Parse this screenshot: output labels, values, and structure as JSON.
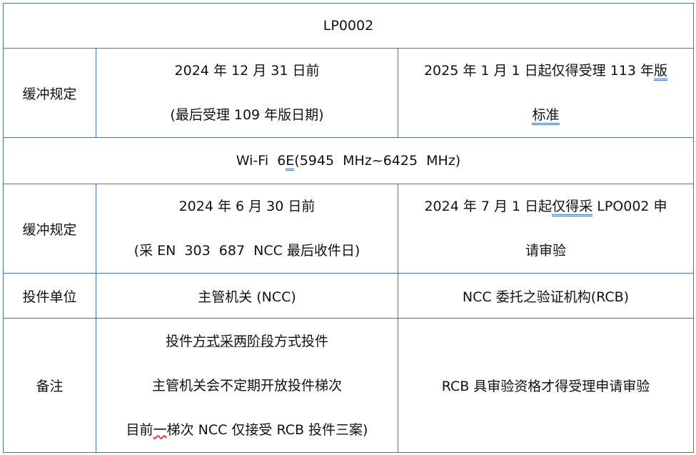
{
  "title_row": "LP0002",
  "section1": {
    "label": "缓冲规定",
    "left": [
      "2024 年 12 月 31 日前",
      "(最后受理 109 年版日期)"
    ],
    "right_line1_a": "2025 年 1 月 1 日起仅得受理 113 年",
    "right_line1_b": "版",
    "right_line2": "标准"
  },
  "wifi_row": {
    "a": "Wi-Fi  6",
    "b": "E",
    "c": "(5945  MHz~6425  MHz)"
  },
  "section2": {
    "label": "缓冲规定",
    "left": [
      "2024 年 6 月 30 日前",
      "(采 EN  303  687  NCC 最后收件日)"
    ],
    "right_line1_a": "2024 年 7 月 1 日起",
    "right_line1_b": "仅得采",
    "right_line1_c": " LPO002 申",
    "right_line2": "请审验"
  },
  "submission_row": {
    "label": "投件单位",
    "left": "主管机关 (NCC)",
    "right": "NCC 委托之验证机构(RCB)"
  },
  "notes_row": {
    "label": "备注",
    "line1_a": "投件",
    "line1_b": "方式采两阶段",
    "line1_c": "方式投件",
    "line2": "主管机关会不定期开放投件梯次",
    "line3_a": "目前",
    "line3_b": "一",
    "line3_c": "梯次 NCC 仅接受 RCB 投件三案)",
    "right": "RCB 具审验资格才得受理申请审验"
  }
}
